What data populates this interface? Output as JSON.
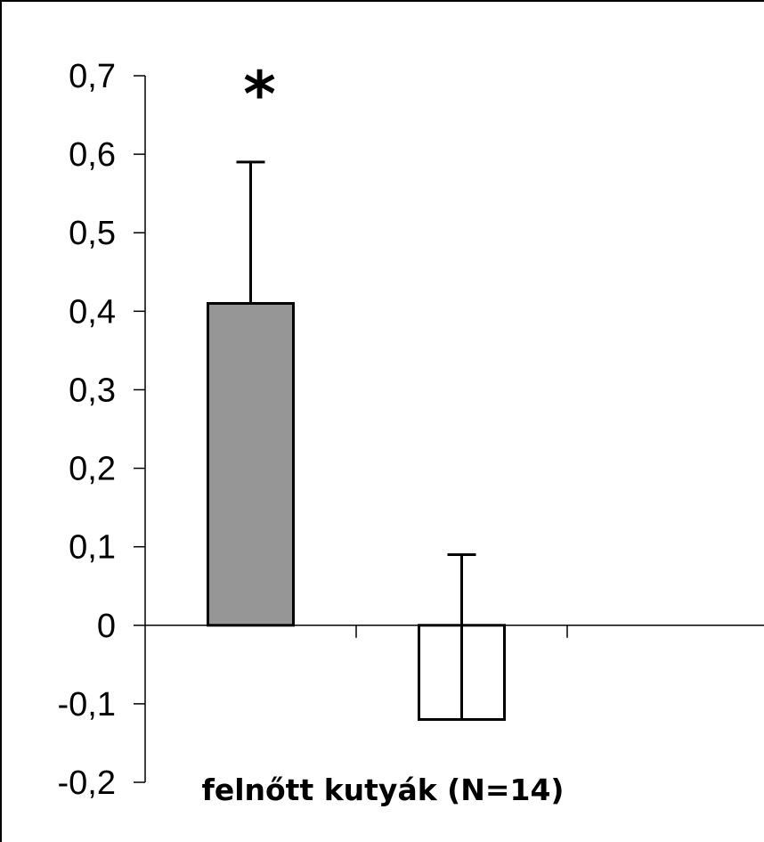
{
  "chart_data": {
    "type": "bar",
    "categories": [
      "",
      ""
    ],
    "values": [
      0.41,
      -0.12
    ],
    "error_upper": [
      0.18,
      0.21
    ],
    "bar_colors": [
      "#969696",
      "#ffffff"
    ],
    "title": "",
    "xlabel": "felnőtt kutyák (N=14)",
    "ylabel": "",
    "ylim": [
      -0.2,
      0.7
    ],
    "yticks": [
      "-0,2",
      "-0,1",
      "0",
      "0,1",
      "0,2",
      "0,3",
      "0,4",
      "0,5",
      "0,6",
      "0,7"
    ],
    "annotations": [
      {
        "text": "*",
        "category_index": 0
      }
    ],
    "grid": false,
    "legend": "none"
  }
}
